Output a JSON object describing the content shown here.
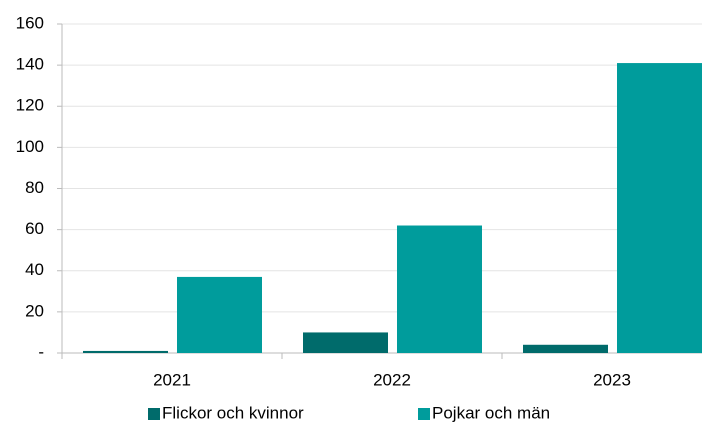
{
  "chart_data": {
    "type": "bar",
    "categories": [
      "2021",
      "2022",
      "2023"
    ],
    "series": [
      {
        "name": "Flickor och kvinnor",
        "color": "#006b6b",
        "values": [
          1,
          10,
          4
        ]
      },
      {
        "name": "Pojkar och män",
        "color": "#009c9c",
        "values": [
          37,
          62,
          141
        ]
      }
    ],
    "ylim": [
      0,
      160
    ],
    "yticks": [
      {
        "value": 0,
        "label": "-"
      },
      20,
      40,
      60,
      80,
      100,
      120,
      140,
      160
    ],
    "grid": true,
    "legend": "bottom"
  }
}
